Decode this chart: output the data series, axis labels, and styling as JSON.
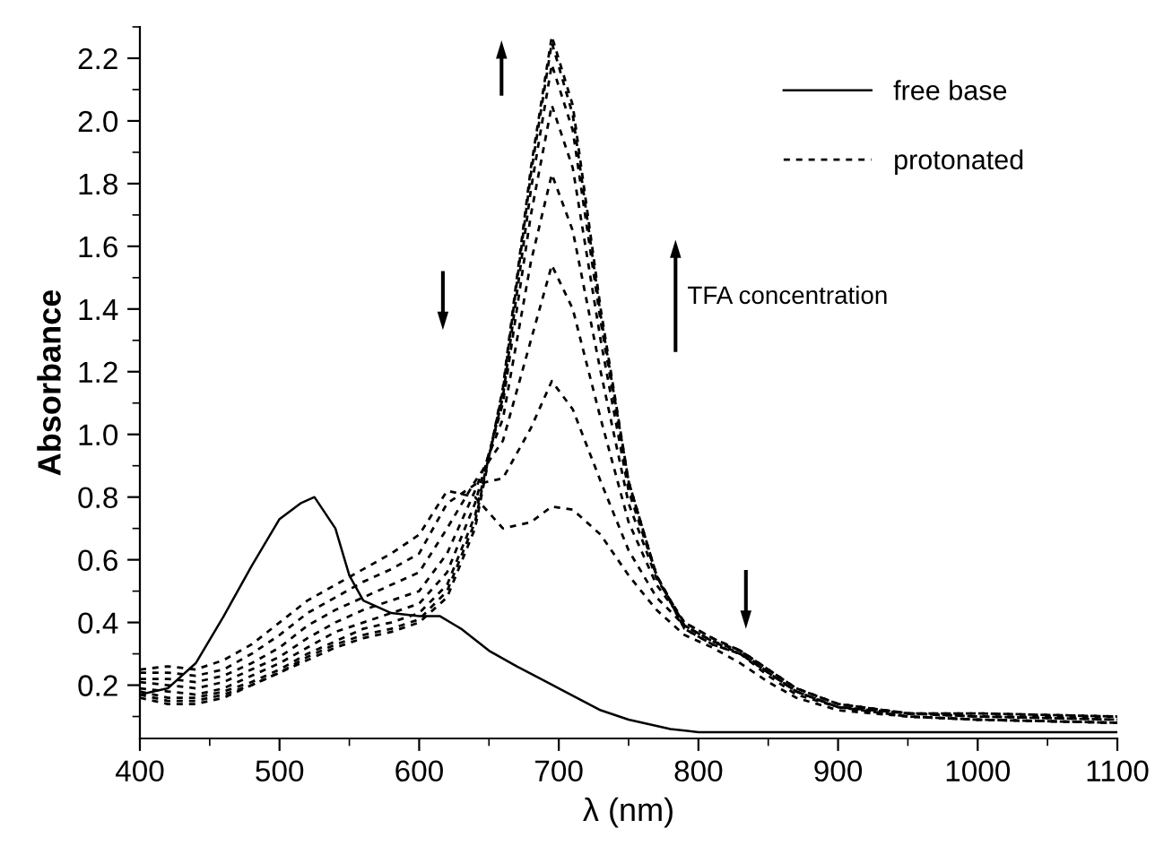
{
  "chart_data": {
    "type": "line",
    "xlabel": "λ (nm)",
    "ylabel": "Absorbance",
    "x": [
      400,
      420,
      440,
      460,
      480,
      500,
      520,
      540,
      560,
      580,
      600,
      620,
      640,
      660,
      680,
      695,
      710,
      730,
      750,
      770,
      790,
      810,
      830,
      850,
      870,
      900,
      950,
      1000,
      1100
    ],
    "series": [
      {
        "name": "free base",
        "color": "#000000",
        "line_style": "solid",
        "x": [
          400,
          420,
          440,
          460,
          480,
          500,
          515,
          525,
          540,
          550,
          560,
          580,
          600,
          615,
          630,
          650,
          670,
          700,
          730,
          750,
          780,
          800,
          900,
          1100
        ],
        "values": [
          0.17,
          0.19,
          0.27,
          0.42,
          0.58,
          0.73,
          0.78,
          0.8,
          0.7,
          0.55,
          0.47,
          0.43,
          0.42,
          0.42,
          0.38,
          0.31,
          0.26,
          0.19,
          0.12,
          0.09,
          0.06,
          0.05,
          0.05,
          0.05
        ]
      },
      {
        "name": "protonated",
        "color": "#000000",
        "line_style": "dashed",
        "values": [
          0.25,
          0.26,
          0.25,
          0.28,
          0.33,
          0.4,
          0.47,
          0.52,
          0.57,
          0.62,
          0.68,
          0.82,
          0.8,
          0.7,
          0.72,
          0.77,
          0.76,
          0.68,
          0.55,
          0.44,
          0.36,
          0.32,
          0.27,
          0.21,
          0.16,
          0.12,
          0.1,
          0.09,
          0.08
        ]
      },
      {
        "color": "#000000",
        "line_style": "dashed",
        "values": [
          0.24,
          0.24,
          0.23,
          0.25,
          0.3,
          0.36,
          0.43,
          0.48,
          0.53,
          0.57,
          0.62,
          0.78,
          0.84,
          0.86,
          1.02,
          1.17,
          1.08,
          0.85,
          0.63,
          0.48,
          0.39,
          0.34,
          0.3,
          0.23,
          0.17,
          0.13,
          0.1,
          0.09,
          0.08
        ]
      },
      {
        "color": "#000000",
        "line_style": "dashed",
        "values": [
          0.22,
          0.22,
          0.21,
          0.23,
          0.27,
          0.32,
          0.39,
          0.44,
          0.48,
          0.52,
          0.56,
          0.7,
          0.85,
          0.98,
          1.3,
          1.54,
          1.4,
          1.05,
          0.72,
          0.52,
          0.4,
          0.35,
          0.31,
          0.24,
          0.18,
          0.13,
          0.1,
          0.09,
          0.08
        ]
      },
      {
        "color": "#000000",
        "line_style": "dashed",
        "values": [
          0.21,
          0.2,
          0.19,
          0.21,
          0.25,
          0.29,
          0.35,
          0.4,
          0.44,
          0.47,
          0.5,
          0.62,
          0.82,
          1.05,
          1.55,
          1.83,
          1.65,
          1.2,
          0.78,
          0.54,
          0.4,
          0.35,
          0.31,
          0.25,
          0.19,
          0.14,
          0.11,
          0.1,
          0.09
        ]
      },
      {
        "color": "#000000",
        "line_style": "dashed",
        "values": [
          0.19,
          0.18,
          0.17,
          0.19,
          0.23,
          0.27,
          0.32,
          0.37,
          0.4,
          0.43,
          0.46,
          0.56,
          0.78,
          1.1,
          1.7,
          2.05,
          1.85,
          1.3,
          0.82,
          0.55,
          0.39,
          0.34,
          0.31,
          0.25,
          0.19,
          0.14,
          0.11,
          0.1,
          0.09
        ]
      },
      {
        "color": "#000000",
        "line_style": "dashed",
        "values": [
          0.18,
          0.16,
          0.16,
          0.18,
          0.21,
          0.25,
          0.3,
          0.34,
          0.38,
          0.4,
          0.43,
          0.52,
          0.74,
          1.12,
          1.78,
          2.18,
          1.97,
          1.36,
          0.84,
          0.55,
          0.39,
          0.34,
          0.31,
          0.25,
          0.19,
          0.14,
          0.11,
          0.1,
          0.1
        ]
      },
      {
        "color": "#000000",
        "line_style": "dashed",
        "values": [
          0.17,
          0.15,
          0.15,
          0.17,
          0.2,
          0.24,
          0.29,
          0.33,
          0.36,
          0.38,
          0.41,
          0.5,
          0.72,
          1.14,
          1.83,
          2.25,
          2.02,
          1.38,
          0.85,
          0.55,
          0.38,
          0.33,
          0.3,
          0.24,
          0.18,
          0.13,
          0.11,
          0.11,
          0.1
        ]
      },
      {
        "color": "#000000",
        "line_style": "dashed",
        "values": [
          0.16,
          0.14,
          0.14,
          0.16,
          0.2,
          0.24,
          0.28,
          0.32,
          0.35,
          0.37,
          0.4,
          0.48,
          0.7,
          1.15,
          1.85,
          2.27,
          2.05,
          1.4,
          0.85,
          0.55,
          0.38,
          0.33,
          0.3,
          0.24,
          0.18,
          0.13,
          0.11,
          0.11,
          0.1
        ]
      }
    ],
    "xlim": [
      400,
      1100
    ],
    "xticks": [
      400,
      500,
      600,
      700,
      800,
      900,
      1000,
      1100
    ],
    "ylim": [
      0.03,
      2.3
    ],
    "yticks": [
      {
        "value": 0.2,
        "label": "0.2"
      },
      {
        "value": 0.4,
        "label": "0.4"
      },
      {
        "value": 0.6,
        "label": "0.6"
      },
      {
        "value": 0.8,
        "label": "0.8"
      },
      {
        "value": 1.0,
        "label": "1.0"
      },
      {
        "value": 1.2,
        "label": "1.2"
      },
      {
        "value": 1.4,
        "label": "1.4"
      },
      {
        "value": 1.6,
        "label": "1.6"
      },
      {
        "value": 1.8,
        "label": "1.8"
      },
      {
        "value": 2.0,
        "label": "2.0"
      },
      {
        "value": 2.2,
        "label": "2.2"
      }
    ],
    "annotations": [
      "TFA concentration"
    ],
    "grid": false,
    "legend": "top right",
    "marker": "none"
  }
}
